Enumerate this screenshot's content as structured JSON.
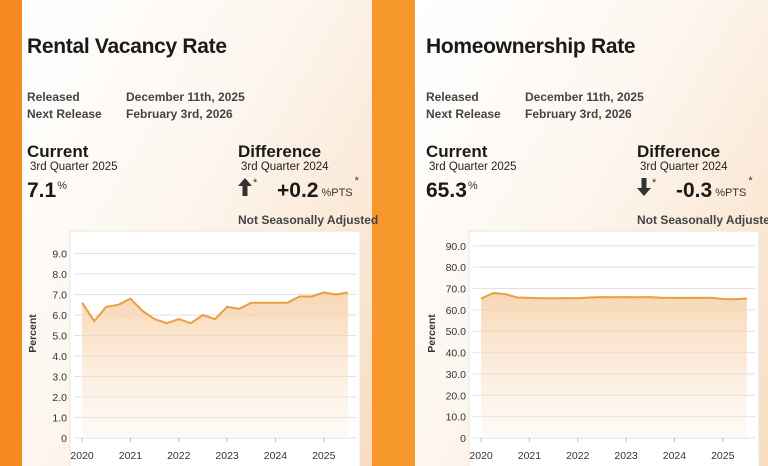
{
  "panels": [
    {
      "title": "Rental Vacancy Rate",
      "released_label": "Released",
      "released": "December 11th, 2025",
      "next_label": "Next Release",
      "next": "February 3rd, 2026",
      "current_label": "Current",
      "current_period": "3rd Quarter 2025",
      "current_value": "7.1",
      "current_unit": "%",
      "difference_label": "Difference",
      "difference_period": "3rd Quarter 2024",
      "difference_value": "+0.2",
      "difference_unit": "%PTS",
      "asterisk": "*",
      "note": "Not Seasonally Adjusted"
    },
    {
      "title": "Homeownership Rate",
      "released_label": "Released",
      "released": "December 11th, 2025",
      "next_label": "Next Release",
      "next": "February 3rd, 2026",
      "current_label": "Current",
      "current_period": "3rd Quarter 2025",
      "current_value": "65.3",
      "current_unit": "%",
      "difference_label": "Difference",
      "difference_period": "3rd Quarter 2024",
      "difference_value": "-0.3",
      "difference_unit": "%PTS",
      "asterisk": "*",
      "note": "Not Seasonally Adjusted"
    }
  ],
  "chart_data": [
    {
      "type": "line",
      "y_label": "Percent",
      "color": "#e8a040",
      "grid": true,
      "x": [
        2020,
        2020.25,
        2020.5,
        2020.75,
        2021,
        2021.25,
        2021.5,
        2021.75,
        2022,
        2022.25,
        2022.5,
        2022.75,
        2023,
        2023.25,
        2023.5,
        2023.75,
        2024,
        2024.25,
        2024.5,
        2024.75,
        2025,
        2025.25,
        2025.5
      ],
      "values": [
        6.6,
        5.7,
        6.4,
        6.5,
        6.8,
        6.2,
        5.8,
        5.6,
        5.8,
        5.6,
        6.0,
        5.8,
        6.4,
        6.3,
        6.6,
        6.6,
        6.6,
        6.6,
        6.9,
        6.9,
        7.1,
        7.0,
        7.1
      ],
      "xlim": [
        2019.75,
        2025.75
      ],
      "xticks": [
        2020,
        2021,
        2022,
        2023,
        2024,
        2025
      ],
      "ylim": [
        0,
        10
      ],
      "yticks": [
        0,
        {
          "value": 1,
          "label": "1.0"
        },
        {
          "value": 2,
          "label": "2.0"
        },
        {
          "value": 3,
          "label": "3.0"
        },
        {
          "value": 4,
          "label": "4.0"
        },
        {
          "value": 5,
          "label": "5.0"
        },
        {
          "value": 6,
          "label": "6.0"
        },
        {
          "value": 7,
          "label": "7.0"
        },
        {
          "value": 8,
          "label": "8.0"
        },
        {
          "value": 9,
          "label": "9.0"
        }
      ]
    },
    {
      "type": "line",
      "y_label": "Percent",
      "color": "#e8a040",
      "grid": true,
      "x": [
        2020,
        2020.25,
        2020.5,
        2020.75,
        2021,
        2021.25,
        2021.5,
        2021.75,
        2022,
        2022.25,
        2022.5,
        2022.75,
        2023,
        2023.25,
        2023.5,
        2023.75,
        2024,
        2024.25,
        2024.5,
        2024.75,
        2025,
        2025.25,
        2025.5
      ],
      "values": [
        65.3,
        67.9,
        67.4,
        65.8,
        65.6,
        65.4,
        65.4,
        65.5,
        65.4,
        65.8,
        66.0,
        65.9,
        66.0,
        65.9,
        66.0,
        65.7,
        65.6,
        65.6,
        65.6,
        65.7,
        65.1,
        65.0,
        65.3
      ],
      "xlim": [
        2019.75,
        2025.75
      ],
      "xticks": [
        2020,
        2021,
        2022,
        2023,
        2024,
        2025
      ],
      "ylim": [
        0,
        96
      ],
      "yticks": [
        0,
        {
          "value": 10,
          "label": "10.0"
        },
        {
          "value": 20,
          "label": "20.0"
        },
        {
          "value": 30,
          "label": "30.0"
        },
        {
          "value": 40,
          "label": "40.0"
        },
        {
          "value": 50,
          "label": "50.0"
        },
        {
          "value": 60,
          "label": "60.0"
        },
        {
          "value": 70,
          "label": "70.0"
        },
        {
          "value": 80,
          "label": "80.0"
        },
        {
          "value": 90,
          "label": "90.0"
        }
      ]
    }
  ]
}
